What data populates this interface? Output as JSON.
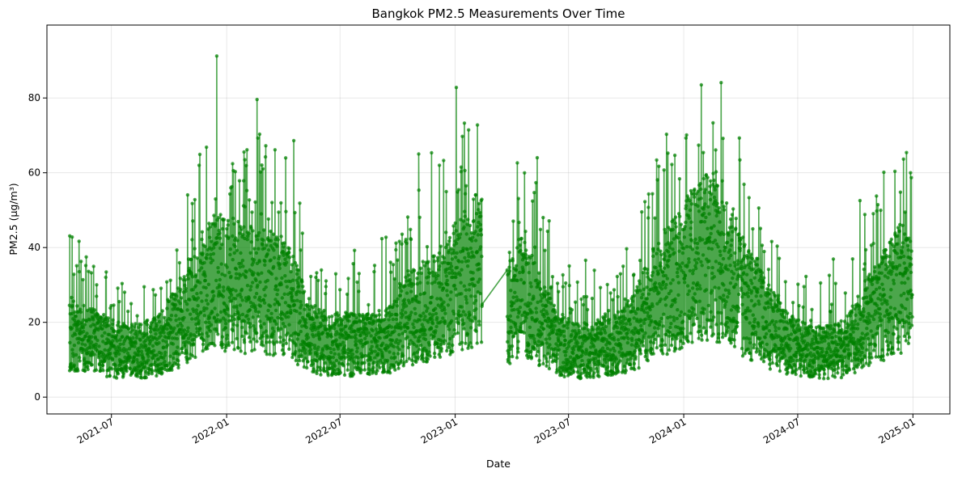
{
  "chart_data": {
    "type": "line",
    "title": "Bangkok PM2.5 Measurements Over Time",
    "xlabel": "Date",
    "ylabel": "PM2.5 (µg/m³)",
    "x_type": "date",
    "xlim": [
      "2021-03-20",
      "2025-03-01"
    ],
    "ylim": [
      -4.5,
      99.5
    ],
    "x_ticks": [
      "2021-07-01",
      "2022-01-01",
      "2022-07-01",
      "2023-01-01",
      "2023-07-01",
      "2024-01-01",
      "2024-07-01",
      "2025-01-01"
    ],
    "x_tick_labels": [
      "2021-07",
      "2022-01",
      "2022-07",
      "2023-01",
      "2023-07",
      "2024-01",
      "2024-07",
      "2025-01"
    ],
    "y_ticks": [
      0,
      20,
      40,
      60,
      80
    ],
    "y_tick_labels": [
      "0",
      "20",
      "40",
      "60",
      "80"
    ],
    "grid": true,
    "color": "#008000",
    "marker": "circle",
    "data_start": "2021-04-25",
    "data_end": "2024-12-31",
    "gap": [
      "2023-02-13",
      "2023-03-25"
    ],
    "y_range_observed": [
      1,
      95
    ],
    "series": [
      {
        "x": [
          "2021-04-25",
          "2021-05-15",
          "2021-06-15",
          "2021-07-15",
          "2021-08-15",
          "2021-09-15",
          "2021-10-15",
          "2021-11-15",
          "2021-12-15",
          "2022-01-15",
          "2022-02-15",
          "2022-03-15",
          "2022-04-15",
          "2022-05-15",
          "2022-06-15",
          "2022-07-15",
          "2022-08-15",
          "2022-09-15",
          "2022-10-15",
          "2022-11-15",
          "2022-12-15",
          "2023-01-15",
          "2023-02-12",
          "2023-03-26",
          "2023-04-15",
          "2023-05-15",
          "2023-06-15",
          "2023-07-15",
          "2023-08-15",
          "2023-09-15",
          "2023-10-15",
          "2023-11-15",
          "2023-12-15",
          "2024-01-15",
          "2024-02-15",
          "2024-03-15",
          "2024-04-15",
          "2024-05-15",
          "2024-06-15",
          "2024-07-15",
          "2024-08-15",
          "2024-09-15",
          "2024-10-15",
          "2024-11-15",
          "2024-12-15",
          "2024-12-31"
        ],
        "y": [
          20,
          18,
          16,
          14,
          14,
          16,
          22,
          30,
          36,
          34,
          32,
          32,
          28,
          18,
          16,
          16,
          16,
          17,
          24,
          26,
          30,
          36,
          40,
          24,
          32,
          24,
          16,
          14,
          15,
          16,
          20,
          30,
          34,
          40,
          44,
          36,
          28,
          22,
          16,
          14,
          14,
          15,
          22,
          28,
          34,
          30
        ]
      }
    ]
  }
}
